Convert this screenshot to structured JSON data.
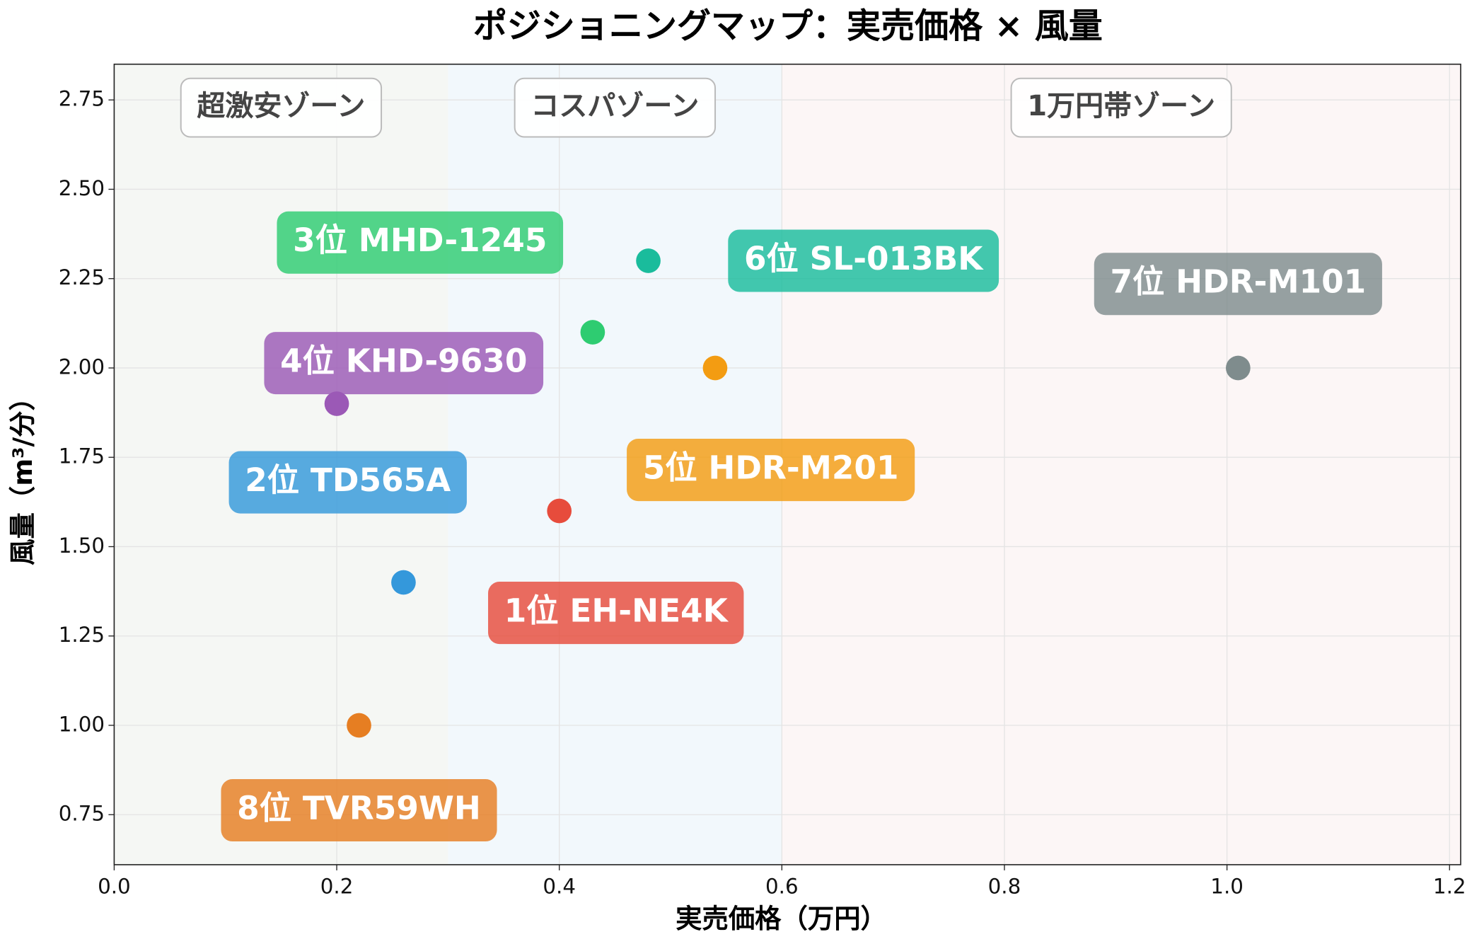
{
  "chart_data": {
    "type": "scatter",
    "title": "ポジショニングマップ：実売価格 × 風量",
    "x_label": "実売価格（万円）",
    "y_label": "風量（m³/分）",
    "xlim": [
      0,
      1.21
    ],
    "ylim": [
      0.61,
      2.85
    ],
    "xticks": [
      {
        "value": 0,
        "label": "0.0"
      },
      0.2,
      0.4,
      0.6,
      0.8,
      {
        "value": 1,
        "label": "1.0"
      },
      1.2
    ],
    "yticks": [
      0.75,
      {
        "value": 1,
        "label": "1.00"
      },
      1.25,
      {
        "value": 1.5,
        "label": "1.50"
      },
      1.75,
      {
        "value": 2,
        "label": "2.00"
      },
      2.25,
      {
        "value": 2.5,
        "label": "2.50"
      },
      2.75
    ],
    "grid": true,
    "zones": [
      {
        "label": "超激安ゾーン",
        "range": [
          0,
          0.3
        ],
        "color": "#f5f7f4"
      },
      {
        "label": "コスパゾーン",
        "range": [
          0.3,
          0.6
        ],
        "color": "#f2f8fc"
      },
      {
        "label": "1万円帯ゾーン",
        "range": [
          0.6,
          1.21
        ],
        "color": "#fcf6f6"
      }
    ],
    "points": [
      {
        "label": "1位 EH-NE4K",
        "x": 0.4,
        "y": 1.6,
        "color": "#e74c3c"
      },
      {
        "label": "2位 TD565A",
        "x": 0.26,
        "y": 1.4,
        "color": "#3498db"
      },
      {
        "label": "3位 MHD-1245",
        "x": 0.43,
        "y": 2.1,
        "color": "#2ecc71"
      },
      {
        "label": "4位 KHD-9630",
        "x": 0.2,
        "y": 1.9,
        "color": "#9b59b6"
      },
      {
        "label": "5位 HDR-M201",
        "x": 0.54,
        "y": 2.0,
        "color": "#f39c12"
      },
      {
        "label": "6位 SL-013BK",
        "x": 0.48,
        "y": 2.3,
        "color": "#1abc9c"
      },
      {
        "label": "7位 HDR-M101",
        "x": 1.01,
        "y": 2.0,
        "color": "#7f8c8d"
      },
      {
        "label": "8位 TVR59WH",
        "x": 0.22,
        "y": 1.0,
        "color": "#e67e22"
      }
    ]
  }
}
